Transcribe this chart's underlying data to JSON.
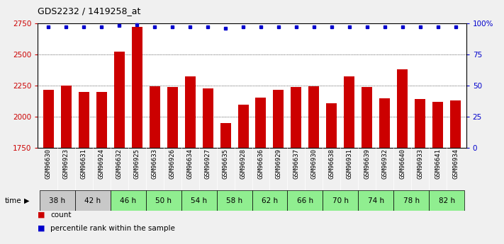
{
  "title": "GDS2232 / 1419258_at",
  "samples": [
    "GSM96630",
    "GSM96923",
    "GSM96631",
    "GSM96924",
    "GSM96632",
    "GSM96925",
    "GSM96633",
    "GSM96926",
    "GSM96634",
    "GSM96927",
    "GSM96635",
    "GSM96928",
    "GSM96636",
    "GSM96929",
    "GSM96637",
    "GSM96930",
    "GSM96638",
    "GSM96931",
    "GSM96639",
    "GSM96932",
    "GSM96640",
    "GSM96933",
    "GSM96641",
    "GSM96934"
  ],
  "time_groups": [
    {
      "label": "38 h",
      "indices": [
        0,
        1
      ],
      "color": "#c8c8c8"
    },
    {
      "label": "42 h",
      "indices": [
        2,
        3
      ],
      "color": "#c8c8c8"
    },
    {
      "label": "46 h",
      "indices": [
        4,
        5
      ],
      "color": "#90ee90"
    },
    {
      "label": "50 h",
      "indices": [
        6,
        7
      ],
      "color": "#90ee90"
    },
    {
      "label": "54 h",
      "indices": [
        8,
        9
      ],
      "color": "#90ee90"
    },
    {
      "label": "58 h",
      "indices": [
        10,
        11
      ],
      "color": "#90ee90"
    },
    {
      "label": "62 h",
      "indices": [
        12,
        13
      ],
      "color": "#90ee90"
    },
    {
      "label": "66 h",
      "indices": [
        14,
        15
      ],
      "color": "#90ee90"
    },
    {
      "label": "70 h",
      "indices": [
        16,
        17
      ],
      "color": "#90ee90"
    },
    {
      "label": "74 h",
      "indices": [
        18,
        19
      ],
      "color": "#90ee90"
    },
    {
      "label": "78 h",
      "indices": [
        20,
        21
      ],
      "color": "#90ee90"
    },
    {
      "label": "82 h",
      "indices": [
        22,
        23
      ],
      "color": "#90ee90"
    }
  ],
  "counts": [
    2215,
    2250,
    2195,
    2195,
    2520,
    2720,
    2245,
    2235,
    2320,
    2225,
    1945,
    2095,
    2150,
    2215,
    2240,
    2245,
    2105,
    2320,
    2240,
    2145,
    2380,
    2140,
    2120,
    2130
  ],
  "percentile_ranks": [
    97,
    97,
    97,
    97,
    98,
    99,
    97,
    97,
    97,
    97,
    96,
    97,
    97,
    97,
    97,
    97,
    97,
    97,
    97,
    97,
    97,
    97,
    97,
    97
  ],
  "bar_color": "#cc0000",
  "dot_color": "#0000cc",
  "ylim_left": [
    1750,
    2750
  ],
  "ylim_right": [
    0,
    100
  ],
  "yticks_left": [
    1750,
    2000,
    2250,
    2500,
    2750
  ],
  "yticks_right": [
    0,
    25,
    50,
    75,
    100
  ],
  "ytick_labels_left": [
    "1750",
    "2000",
    "2250",
    "2500",
    "2750"
  ],
  "ytick_labels_right": [
    "0",
    "25",
    "50",
    "75",
    "100%"
  ],
  "sample_bg": "#cccccc",
  "plot_bg": "#ffffff",
  "fig_bg": "#f0f0f0",
  "legend_count_label": "count",
  "legend_pct_label": "percentile rank within the sample",
  "gridline_color": "#000000",
  "gridline_vals": [
    2000,
    2250,
    2500
  ]
}
